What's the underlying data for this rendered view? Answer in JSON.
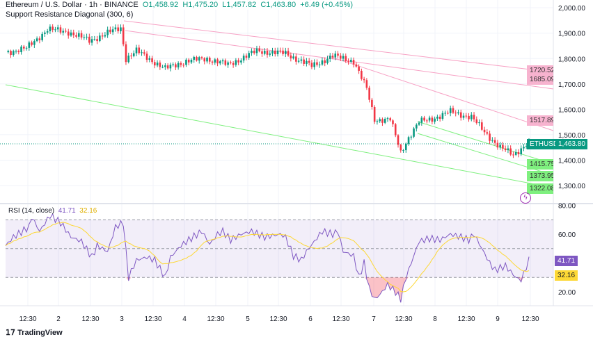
{
  "header": {
    "symbol": "Ethereum / U.S. Dollar · 1h · BINANCE",
    "open": "O1,458.92",
    "high": "H1,475.20",
    "low": "L1,457.82",
    "close": "C1,463.80",
    "change": "+6.49 (+0.45%)",
    "indicator": "Support Resistance Diagonal (300, 6)"
  },
  "price_axis": [
    "2,000.00",
    "1,900.00",
    "1,800.00",
    "1,700.00",
    "1,600.00",
    "1,500.00",
    "1,400.00",
    "1,300.00"
  ],
  "current": {
    "symbol": "ETHUSD",
    "price": "1,463.80"
  },
  "levels": {
    "r1": "1720.52",
    "r2": "1685.09",
    "r3": "1517.89",
    "s1": "1415.75",
    "s2": "1373.95",
    "s3": "1322.08"
  },
  "rsi": {
    "title": "RSI (14, close)",
    "value": "41.71",
    "ma": "32.16",
    "axis": [
      "80.00",
      "60.00",
      "20.00"
    ]
  },
  "time_axis": [
    "12:30",
    "2",
    "12:30",
    "3",
    "12:30",
    "4",
    "12:30",
    "5",
    "12:30",
    "6",
    "12:30",
    "7",
    "12:30",
    "8",
    "12:30",
    "9",
    "12:30"
  ],
  "brand": "TradingView",
  "colors": {
    "up": "#089981",
    "down": "#f23645",
    "rsi": "#7e57c2",
    "ma": "#fdd835",
    "resistance": "#f7a1c4",
    "support": "#7ff07f"
  },
  "chart_data": {
    "type": "line",
    "title": "Ethereum / U.S. Dollar 1h",
    "ylim": [
      1250,
      2020
    ],
    "price_keypoints": [
      [
        0,
        1825
      ],
      [
        8,
        1840
      ],
      [
        16,
        1915
      ],
      [
        24,
        1905
      ],
      [
        32,
        1870
      ],
      [
        40,
        1905
      ],
      [
        44,
        1920
      ],
      [
        46,
        1800
      ],
      [
        50,
        1830
      ],
      [
        61,
        1760
      ],
      [
        69,
        1790
      ],
      [
        77,
        1800
      ],
      [
        85,
        1775
      ],
      [
        96,
        1830
      ],
      [
        107,
        1820
      ],
      [
        117,
        1770
      ],
      [
        125,
        1810
      ],
      [
        133,
        1790
      ],
      [
        138,
        1680
      ],
      [
        141,
        1560
      ],
      [
        147,
        1560
      ],
      [
        151,
        1430
      ],
      [
        154,
        1490
      ],
      [
        158,
        1550
      ],
      [
        162,
        1560
      ],
      [
        170,
        1590
      ],
      [
        178,
        1570
      ],
      [
        183,
        1510
      ],
      [
        189,
        1450
      ],
      [
        194,
        1420
      ],
      [
        199,
        1464
      ]
    ],
    "rsi_keypoints": [
      [
        0,
        52
      ],
      [
        3,
        58
      ],
      [
        9,
        65
      ],
      [
        10,
        72
      ],
      [
        13,
        62
      ],
      [
        17,
        73
      ],
      [
        21,
        68
      ],
      [
        25,
        58
      ],
      [
        29,
        55
      ],
      [
        33,
        44
      ],
      [
        35,
        52
      ],
      [
        39,
        48
      ],
      [
        42,
        65
      ],
      [
        45,
        68
      ],
      [
        46,
        48
      ],
      [
        47,
        30
      ],
      [
        50,
        42
      ],
      [
        54,
        44
      ],
      [
        57,
        42
      ],
      [
        61,
        30
      ],
      [
        63,
        44
      ],
      [
        67,
        52
      ],
      [
        70,
        56
      ],
      [
        75,
        62
      ],
      [
        78,
        53
      ],
      [
        81,
        60
      ],
      [
        83,
        62
      ],
      [
        86,
        56
      ],
      [
        90,
        60
      ],
      [
        94,
        62
      ],
      [
        99,
        58
      ],
      [
        105,
        60
      ],
      [
        107,
        58
      ],
      [
        110,
        45
      ],
      [
        113,
        42
      ],
      [
        115,
        48
      ],
      [
        118,
        55
      ],
      [
        121,
        62
      ],
      [
        125,
        60
      ],
      [
        127,
        62
      ],
      [
        129,
        48
      ],
      [
        133,
        45
      ],
      [
        135,
        30
      ],
      [
        137,
        40
      ],
      [
        139,
        22
      ],
      [
        141,
        15
      ],
      [
        143,
        18
      ],
      [
        146,
        25
      ],
      [
        149,
        20
      ],
      [
        151,
        15
      ],
      [
        153,
        30
      ],
      [
        155,
        40
      ],
      [
        158,
        55
      ],
      [
        162,
        57
      ],
      [
        166,
        56
      ],
      [
        170,
        60
      ],
      [
        174,
        58
      ],
      [
        177,
        56
      ],
      [
        179,
        60
      ],
      [
        182,
        50
      ],
      [
        185,
        40
      ],
      [
        187,
        35
      ],
      [
        191,
        38
      ],
      [
        195,
        30
      ],
      [
        197,
        28
      ],
      [
        200,
        42
      ]
    ]
  }
}
